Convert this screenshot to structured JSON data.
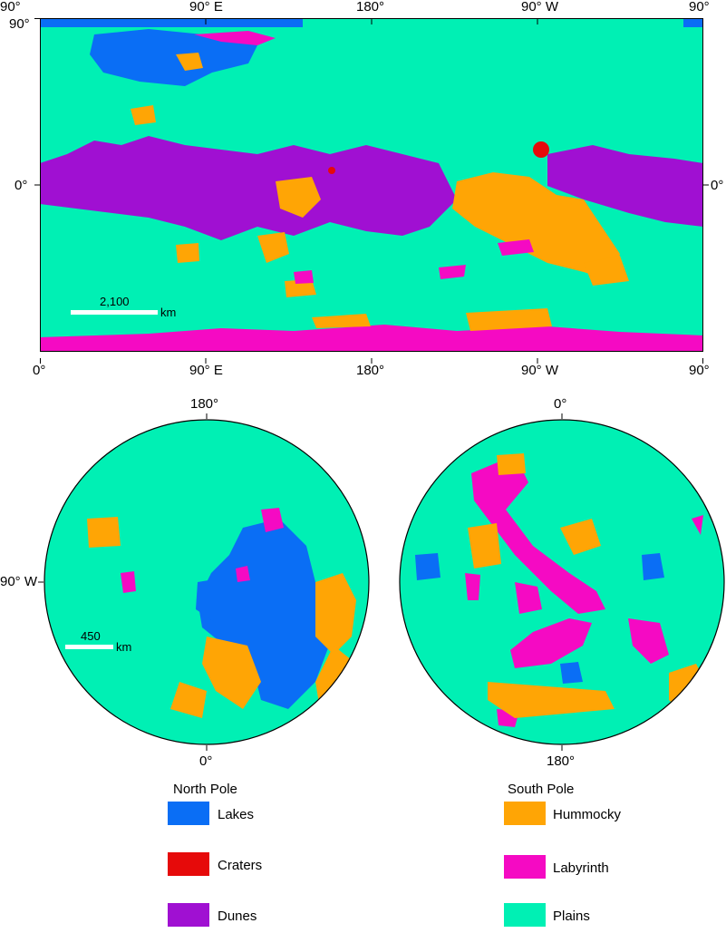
{
  "colors": {
    "plains": "#00f0b4",
    "lakes": "#0a6ef5",
    "craters": "#e60a0a",
    "dunes": "#a010d2",
    "hummocky": "#ffa505",
    "labyrinth": "#f50ac3",
    "frame": "#000000",
    "background": "#ffffff"
  },
  "global_map": {
    "top_ticks": [
      "90°",
      "90° E",
      "180°",
      "90° W",
      "90°"
    ],
    "bottom_ticks": [
      "0°",
      "90° E",
      "180°",
      "90° W",
      "90°"
    ],
    "left_ticks": [
      "90°",
      "0°"
    ],
    "right_ticks": [
      "0°"
    ],
    "scale_bar": {
      "value": "2,100",
      "unit": "km"
    }
  },
  "north_pole_map": {
    "top_tick": "180°",
    "bottom_tick": "0°",
    "left_tick": "90° W",
    "scale_bar": {
      "value": "450",
      "unit": "km"
    },
    "title": "North Pole"
  },
  "south_pole_map": {
    "top_tick": "0°",
    "bottom_tick": "180°",
    "title": "South Pole"
  },
  "legend": {
    "items": [
      {
        "label": "Lakes",
        "color_key": "lakes"
      },
      {
        "label": "Craters",
        "color_key": "craters"
      },
      {
        "label": "Dunes",
        "color_key": "dunes"
      },
      {
        "label": "Hummocky",
        "color_key": "hummocky"
      },
      {
        "label": "Labyrinth",
        "color_key": "labyrinth"
      },
      {
        "label": "Plains",
        "color_key": "plains"
      }
    ]
  }
}
